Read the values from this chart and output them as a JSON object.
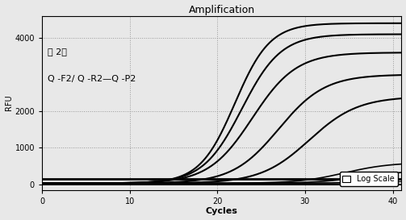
{
  "title": "Amplification",
  "xlabel": "Cycles",
  "ylabel": "RFU",
  "xlim": [
    0,
    41
  ],
  "ylim": [
    -150,
    4600
  ],
  "yticks": [
    0,
    1000,
    2000,
    4000
  ],
  "xticks": [
    0,
    10,
    20,
    30,
    40
  ],
  "annotation_line1": "组 2：",
  "annotation_line2": "Q -F2/ Q -R2—Q -P2",
  "legend_label": "Log Scale",
  "background_color": "#e8e8e8",
  "grid_color": "#999999",
  "flat_baseline": 150,
  "flat_lw": 2.0,
  "curves": [
    {
      "lw": 1.5,
      "midpoint": 22.0,
      "plateau": 4400,
      "steepness": 0.5
    },
    {
      "lw": 1.5,
      "midpoint": 22.8,
      "plateau": 4100,
      "steepness": 0.45
    },
    {
      "lw": 1.5,
      "midpoint": 24.0,
      "plateau": 3600,
      "steepness": 0.4
    },
    {
      "lw": 1.5,
      "midpoint": 27.0,
      "plateau": 3000,
      "steepness": 0.38
    },
    {
      "lw": 1.5,
      "midpoint": 30.5,
      "plateau": 2400,
      "steepness": 0.36
    },
    {
      "lw": 1.2,
      "midpoint": 34.5,
      "plateau": 600,
      "steepness": 0.38
    },
    {
      "lw": 1.2,
      "midpoint": 36.5,
      "plateau": 380,
      "steepness": 0.38
    },
    {
      "lw": 0.9,
      "midpoint": 38.0,
      "plateau": 160,
      "steepness": 0.4
    },
    {
      "lw": 0.9,
      "midpoint": 39.5,
      "plateau": 100,
      "steepness": 0.4
    }
  ]
}
